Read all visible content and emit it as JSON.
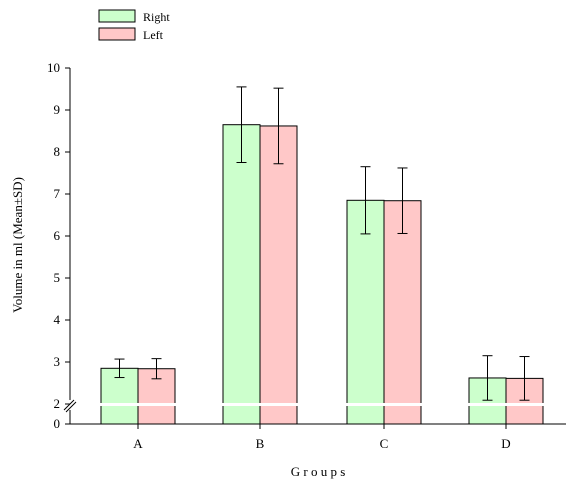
{
  "chart_data": {
    "type": "bar",
    "title": "",
    "xlabel": "G r o u p s",
    "ylabel": "Volume in ml (Mean±SD)",
    "categories": [
      "A",
      "B",
      "C",
      "D"
    ],
    "series": [
      {
        "name": "Right",
        "color": "#ccffcc",
        "values": [
          2.85,
          8.65,
          6.85,
          2.62
        ],
        "sd": [
          0.22,
          0.9,
          0.8,
          0.53
        ]
      },
      {
        "name": "Left",
        "color": "#ffc8c8",
        "values": [
          2.84,
          8.62,
          6.84,
          2.61
        ],
        "sd": [
          0.24,
          0.9,
          0.78,
          0.52
        ]
      }
    ],
    "ylim": [
      0,
      10
    ],
    "axis_break": {
      "from": 0,
      "to": 2
    },
    "y_ticks": [
      "0",
      "2",
      "3",
      "4",
      "5",
      "6",
      "7",
      "8",
      "9",
      "10"
    ],
    "grid": false,
    "legend_position": "top-left"
  }
}
